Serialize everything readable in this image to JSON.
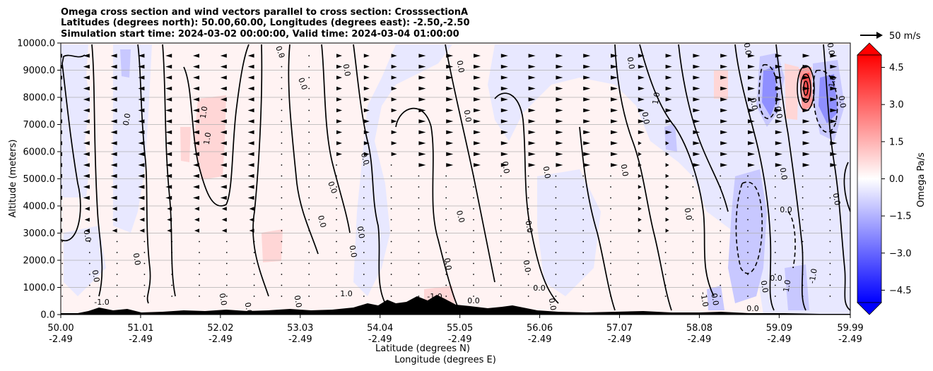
{
  "chart_data": {
    "type": "heatmap",
    "title": [
      "Omega cross section and wind vectors parallel to cross section: CrosssectionA",
      "Latitudes (degrees north): 50.00,60.00, Longitudes (degrees east): -2.50,-2.50",
      "Simulation start time: 2024-03-02 00:00:00, Valid time: 2024-03-04 01:00:00"
    ],
    "ylabel": "Altitude (meters)",
    "xlabel_lat": "Latitude (degrees N)",
    "xlabel_lon": "Longitude (degrees E)",
    "y_ticks": [
      "0.0",
      "1000.0",
      "2000.0",
      "3000.0",
      "4000.0",
      "5000.0",
      "6000.0",
      "7000.0",
      "8000.0",
      "9000.0",
      "10000.0"
    ],
    "ylim": [
      0,
      10000
    ],
    "xlim": [
      50.0,
      59.99
    ],
    "x_ticks": [
      {
        "lat": "50.00",
        "lon": "-2.49"
      },
      {
        "lat": "51.01",
        "lon": "-2.49"
      },
      {
        "lat": "52.02",
        "lon": "-2.49"
      },
      {
        "lat": "53.03",
        "lon": "-2.49"
      },
      {
        "lat": "54.04",
        "lon": "-2.49"
      },
      {
        "lat": "55.05",
        "lon": "-2.49"
      },
      {
        "lat": "56.06",
        "lon": "-2.49"
      },
      {
        "lat": "57.07",
        "lon": "-2.49"
      },
      {
        "lat": "58.08",
        "lon": "-2.49"
      },
      {
        "lat": "59.09",
        "lon": "-2.49"
      },
      {
        "lat": "59.99",
        "lon": "-2.49"
      }
    ],
    "grid": true,
    "colorbar": {
      "label": "Omega Pa/s",
      "ticks": [
        "4.5",
        "3.0",
        "1.5",
        "0.0",
        "−1.5",
        "−3.0",
        "−4.5"
      ],
      "range": [
        -5.0,
        5.0
      ],
      "colormap": "bwr",
      "extend": "both"
    },
    "quiver_key": "50 m/s",
    "contour_labels": [
      "0.0",
      "-1.0",
      "1.0"
    ],
    "colors": {
      "positive": "#ff0000",
      "negative": "#0000ff",
      "terrain": "#000000"
    }
  }
}
